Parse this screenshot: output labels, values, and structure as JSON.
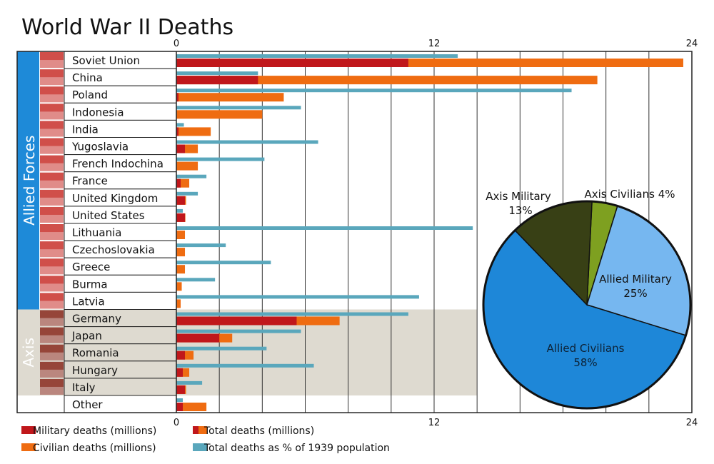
{
  "chart_data": [
    {
      "type": "bar",
      "title": "World War II Deaths",
      "xlim": [
        0,
        24
      ],
      "x_ticks": [
        "0",
        "12",
        "24"
      ],
      "group_labels": {
        "allied": "Allied Forces",
        "axis": "Axis"
      },
      "categories": [
        "Soviet Union",
        "China",
        "Poland",
        "Indonesia",
        "India",
        "Yugoslavia",
        "French Indochina",
        "France",
        "United Kingdom",
        "United States",
        "Lithuania",
        "Czechoslovakia",
        "Greece",
        "Burma",
        "Latvia",
        "Germany",
        "Japan",
        "Romania",
        "Hungary",
        "Italy",
        "Other"
      ],
      "group_of": [
        "allied",
        "allied",
        "allied",
        "allied",
        "allied",
        "allied",
        "allied",
        "allied",
        "allied",
        "allied",
        "allied",
        "allied",
        "allied",
        "allied",
        "allied",
        "axis",
        "axis",
        "axis",
        "axis",
        "axis",
        "other"
      ],
      "series": [
        {
          "name": "Military deaths (millions)",
          "color": "#c0171b",
          "values": [
            10.8,
            3.8,
            0.1,
            0.0,
            0.1,
            0.4,
            0.0,
            0.2,
            0.4,
            0.4,
            0.0,
            0.0,
            0.0,
            0.0,
            0.0,
            5.6,
            2.0,
            0.4,
            0.3,
            0.4,
            0.3
          ]
        },
        {
          "name": "Total deaths (millions)",
          "color": "#ef6c11",
          "values": [
            23.6,
            19.6,
            5.0,
            4.0,
            1.6,
            1.0,
            1.0,
            0.6,
            0.45,
            0.42,
            0.4,
            0.4,
            0.4,
            0.25,
            0.2,
            7.6,
            2.6,
            0.8,
            0.6,
            0.45,
            1.4
          ]
        },
        {
          "name": "Total deaths as % of 1939 population",
          "color": "#5aa7bc",
          "values": [
            13.1,
            3.8,
            18.4,
            5.8,
            0.35,
            6.6,
            4.1,
            1.4,
            1.0,
            0.3,
            13.8,
            2.3,
            4.4,
            1.8,
            11.3,
            10.8,
            5.8,
            4.2,
            6.4,
            1.2,
            0.3
          ]
        }
      ],
      "legend": [
        {
          "label": "Military deaths (millions)",
          "left": "#c0171b",
          "right": null
        },
        {
          "label": "Total deaths (millions)",
          "left": "#c0171b",
          "right": "#ef6c11"
        },
        {
          "label": "Civilian deaths (millions)",
          "left": "#ef6c11",
          "right": null
        },
        {
          "label": "Total deaths as % of 1939 population",
          "left": "#5aa7bc",
          "right": null
        }
      ],
      "colors": {
        "allied_band": "#1e8ad8",
        "axis_band": "#4a5223",
        "axis_bg": "#dedad0",
        "grid": "#333333"
      }
    },
    {
      "type": "pie",
      "slices": [
        {
          "label_lines": [
            "Axis Civilians 4%"
          ],
          "value": 4,
          "color": "#7ea020"
        },
        {
          "label_lines": [
            "Allied Military",
            "25%"
          ],
          "value": 25,
          "color": "#76b7f0"
        },
        {
          "label_lines": [
            "Allied Civilians",
            "58%"
          ],
          "value": 58,
          "color": "#1e87d8"
        },
        {
          "label_lines": [
            "Axis Military",
            "13%"
          ],
          "value": 13,
          "color": "#384015"
        }
      ]
    }
  ]
}
